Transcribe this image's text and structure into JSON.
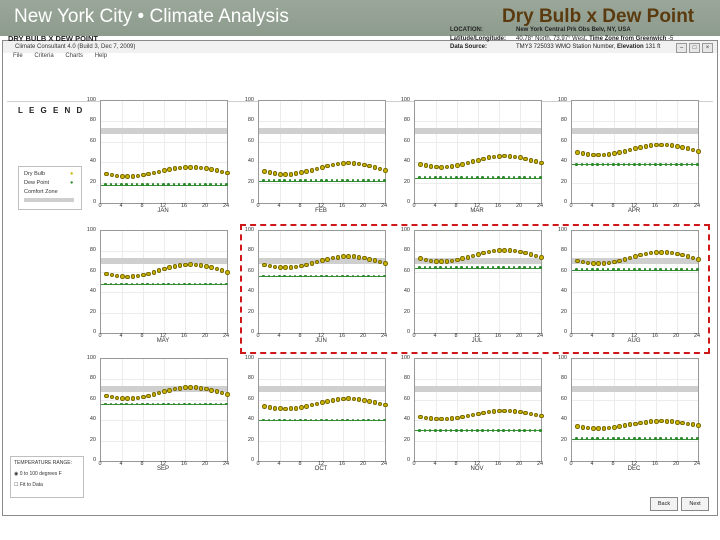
{
  "slide": {
    "left_title": "New York City • Climate Analysis",
    "right_title": "Dry Bulb x Dew Point"
  },
  "window": {
    "title": "Climate Consultant 4.0 (Build 3, Dec 7, 2009)",
    "menu": [
      "File",
      "Criteria",
      "Charts",
      "Help"
    ]
  },
  "chart_title": "DRY BULB  X  DEW POINT",
  "location_info": {
    "location_label": "LOCATION:",
    "location_value": "New York Central Prk Obs Belv, NY, USA",
    "latlong_label": "Latitude/Longitude:",
    "latlong_value": "40.78° North, 73.97° West,",
    "tz_label": "Time Zone from Greenwich",
    "tz_value": "-5",
    "source_label": "Data Source:",
    "source_value": "TMY3    725033 WMO Station Number,",
    "elev_label": "Elevation",
    "elev_value": "131 ft"
  },
  "legend": {
    "title": "L E G E N D",
    "dry_bulb": "Dry Bulb",
    "dew_point": "Dew Point",
    "comfort_zone": "Comfort Zone"
  },
  "temperature_range": {
    "title": "TEMPERATURE RANGE:",
    "option1": "0 to 100 degrees F",
    "option2": "Fit to Data"
  },
  "buttons": {
    "back": "Back",
    "next": "Next"
  },
  "colors": {
    "dry_bulb": "#c8b400",
    "dew_point": "#2d8a2d",
    "comfort": "#cfcfcf",
    "highlight": "#d0181a"
  },
  "chart_data": {
    "type": "scatter",
    "y_ticks": [
      0,
      20,
      40,
      60,
      80,
      100
    ],
    "x_ticks": [
      0,
      4,
      8,
      12,
      16,
      20,
      24
    ],
    "ylim": [
      0,
      100
    ],
    "xlim": [
      0,
      24
    ],
    "comfort_zone_range": [
      68,
      74
    ],
    "months": [
      {
        "name": "JAN",
        "dry_min": 27,
        "dry_max": 36,
        "dew": 18
      },
      {
        "name": "FEB",
        "dry_min": 29,
        "dry_max": 40,
        "dew": 22
      },
      {
        "name": "MAR",
        "dry_min": 36,
        "dry_max": 47,
        "dew": 25
      },
      {
        "name": "APR",
        "dry_min": 48,
        "dry_max": 58,
        "dew": 38
      },
      {
        "name": "MAY",
        "dry_min": 56,
        "dry_max": 68,
        "dew": 48
      },
      {
        "name": "JUN",
        "dry_min": 65,
        "dry_max": 76,
        "dew": 56
      },
      {
        "name": "JUL",
        "dry_min": 71,
        "dry_max": 82,
        "dew": 64
      },
      {
        "name": "AUG",
        "dry_min": 69,
        "dry_max": 80,
        "dew": 62
      },
      {
        "name": "SEP",
        "dry_min": 62,
        "dry_max": 73,
        "dew": 56
      },
      {
        "name": "OCT",
        "dry_min": 52,
        "dry_max": 62,
        "dew": 40
      },
      {
        "name": "NOV",
        "dry_min": 42,
        "dry_max": 50,
        "dew": 30
      },
      {
        "name": "DEC",
        "dry_min": 33,
        "dry_max": 40,
        "dew": 22
      }
    ]
  }
}
